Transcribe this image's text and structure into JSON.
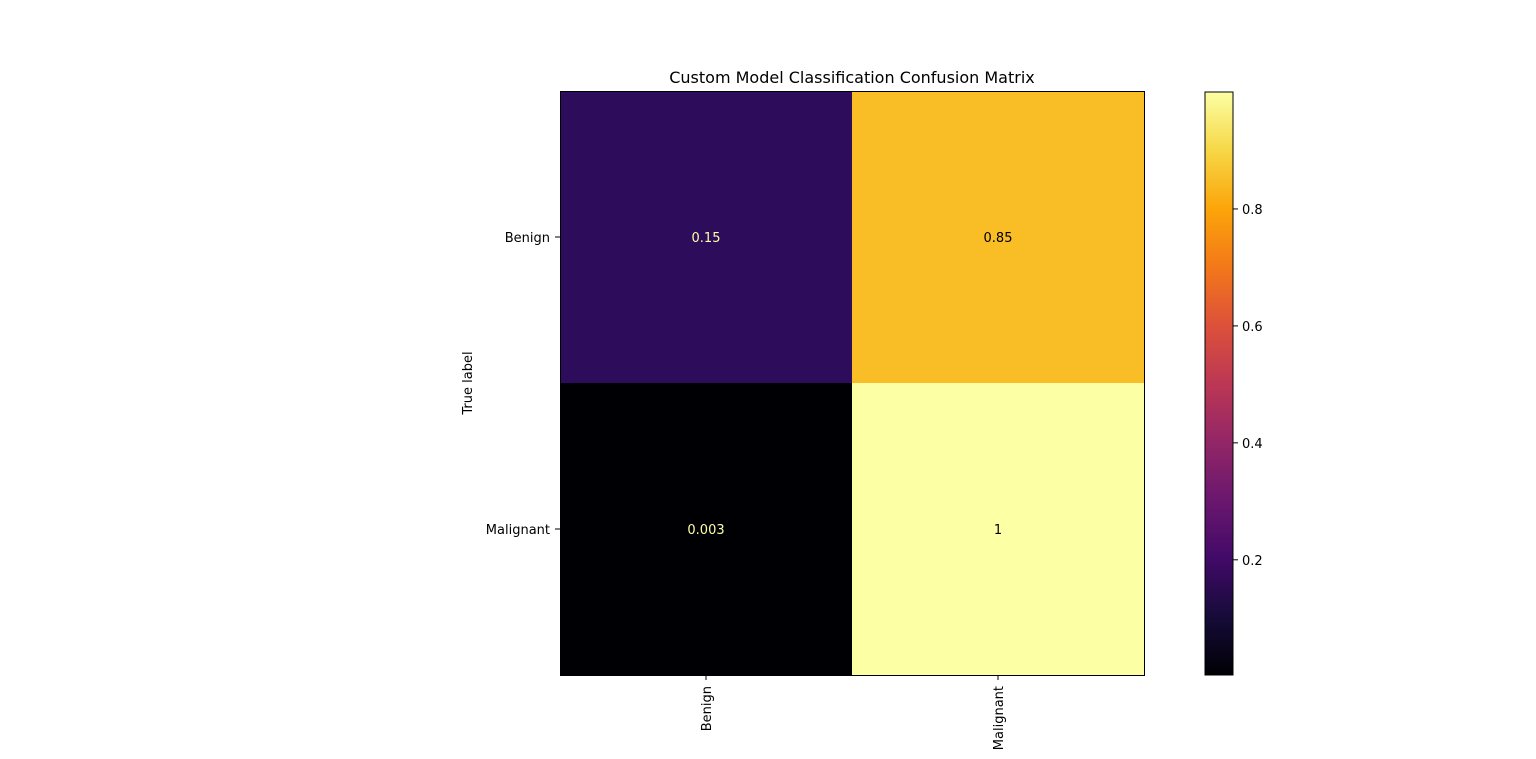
{
  "chart_data": {
    "type": "heatmap",
    "title": "Custom Model Classification Confusion Matrix",
    "ylabel": "True label",
    "xlabel": "",
    "x_categories": [
      "Benign",
      "Malignant"
    ],
    "y_categories": [
      "Benign",
      "Malignant"
    ],
    "values": [
      [
        0.15,
        0.85
      ],
      [
        0.003,
        1
      ]
    ],
    "value_labels": [
      [
        "0.15",
        "0.85"
      ],
      [
        "0.003",
        "1"
      ]
    ],
    "colormap": "inferno",
    "colors": {
      "cells": [
        [
          "#2d0c5b",
          "#f9bd25"
        ],
        [
          "#000004",
          "#fcffa4"
        ]
      ],
      "label_light": "#fcffa4",
      "label_dark": "#000004"
    },
    "colorbar": {
      "range": [
        0.003,
        1
      ],
      "ticks": [
        0.2,
        0.4,
        0.6,
        0.8
      ],
      "tick_labels": [
        "0.2",
        "0.4",
        "0.6",
        "0.8"
      ]
    }
  }
}
